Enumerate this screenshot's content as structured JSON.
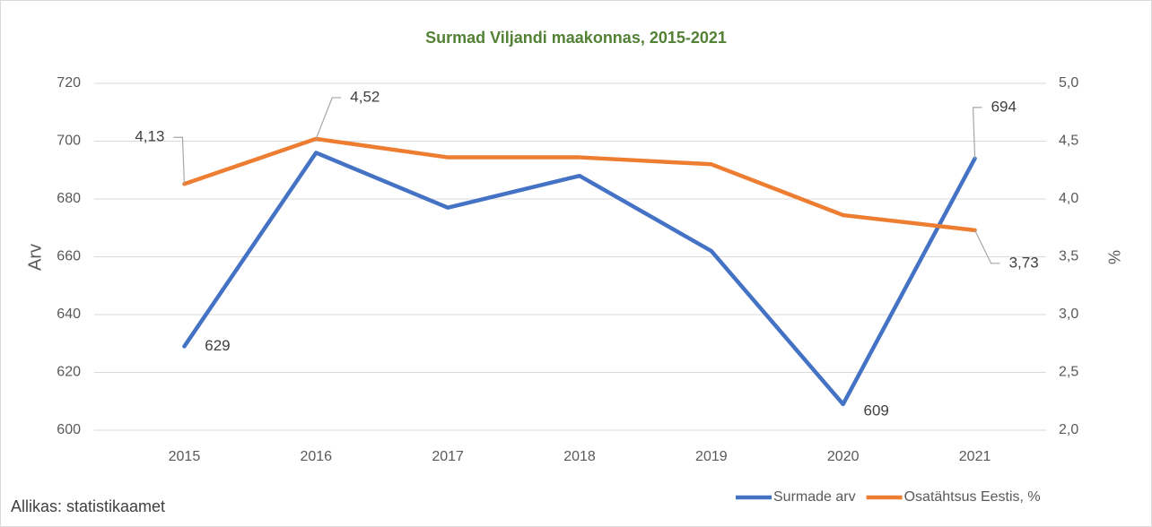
{
  "chart_data": {
    "type": "line",
    "title": "Surmad Viljandi maakonnas, 2015-2021",
    "source": "Allikas: statistikaamet",
    "ylabel": "Arv",
    "y2label": "%",
    "categories": [
      "2015",
      "2016",
      "2017",
      "2018",
      "2019",
      "2020",
      "2021"
    ],
    "series": [
      {
        "name": "Surmade arv",
        "color": "#4472c4",
        "axis": "y",
        "values": [
          629,
          696,
          677,
          688,
          662,
          609,
          694
        ],
        "value_labels": [
          "629",
          null,
          null,
          null,
          null,
          "609",
          "694"
        ]
      },
      {
        "name": "Osatähtsus Eestis, %",
        "color": "#ed7d31",
        "axis": "y2",
        "values": [
          4.13,
          4.52,
          4.36,
          4.36,
          4.3,
          3.86,
          3.73
        ],
        "value_labels": [
          "4,13",
          "4,52",
          null,
          null,
          null,
          null,
          "3,73"
        ]
      }
    ],
    "ylim": [
      600,
      720
    ],
    "yticks": [
      600,
      620,
      640,
      660,
      680,
      700,
      720
    ],
    "y2lim": [
      2.0,
      5.0
    ],
    "y2ticks": [
      {
        "value": 2.0,
        "label": "2,0"
      },
      {
        "value": 2.5,
        "label": "2,5"
      },
      {
        "value": 3.0,
        "label": "3,0"
      },
      {
        "value": 3.5,
        "label": "3,5"
      },
      {
        "value": 4.0,
        "label": "4,0"
      },
      {
        "value": 4.5,
        "label": "4,5"
      },
      {
        "value": 5.0,
        "label": "5,0"
      }
    ],
    "grid": true,
    "legend": "bottom-right"
  }
}
